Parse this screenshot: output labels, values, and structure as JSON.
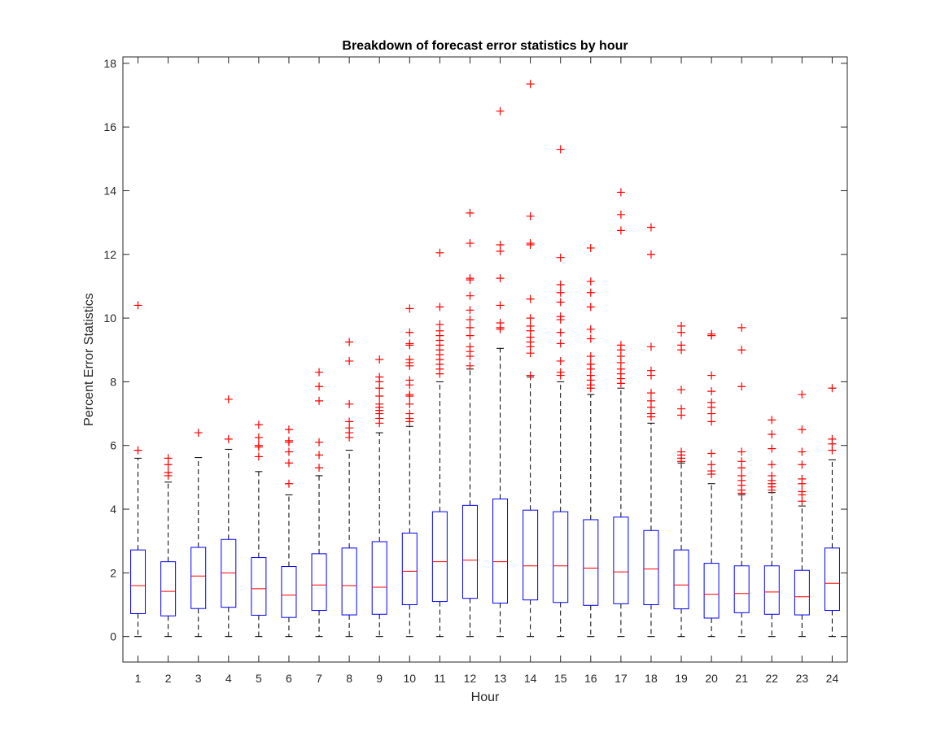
{
  "chart_data": {
    "type": "boxplot",
    "title": "Breakdown of forecast error statistics by hour",
    "xlabel": "Hour",
    "ylabel": "Percent Error Statistics",
    "ylim": [
      -0.8,
      18.2
    ],
    "yticks": [
      0,
      2,
      4,
      6,
      8,
      10,
      12,
      14,
      16,
      18
    ],
    "grid": false,
    "legend": "none",
    "colors": {
      "box": "#0000ff",
      "median": "#ff0000",
      "whisker": "#000000",
      "outlier": "#ff0000",
      "axis": "#262626"
    },
    "categories": [
      "1",
      "2",
      "3",
      "4",
      "5",
      "6",
      "7",
      "8",
      "9",
      "10",
      "11",
      "12",
      "13",
      "14",
      "15",
      "16",
      "17",
      "18",
      "19",
      "20",
      "21",
      "22",
      "23",
      "24"
    ],
    "boxes": [
      {
        "hour": "1",
        "min": 0,
        "q1": 0.72,
        "median": 1.6,
        "q3": 2.72,
        "max": 5.6,
        "outliers": [
          5.85,
          10.4
        ]
      },
      {
        "hour": "2",
        "min": 0,
        "q1": 0.65,
        "median": 1.42,
        "q3": 2.35,
        "max": 4.85,
        "outliers": [
          5.05,
          5.15,
          5.4,
          5.6
        ]
      },
      {
        "hour": "3",
        "min": 0,
        "q1": 0.88,
        "median": 1.9,
        "q3": 2.8,
        "max": 5.62,
        "outliers": [
          6.4
        ]
      },
      {
        "hour": "4",
        "min": 0,
        "q1": 0.92,
        "median": 2.0,
        "q3": 3.05,
        "max": 5.88,
        "outliers": [
          6.2,
          7.45
        ]
      },
      {
        "hour": "5",
        "min": 0,
        "q1": 0.67,
        "median": 1.5,
        "q3": 2.48,
        "max": 5.18,
        "outliers": [
          5.65,
          5.95,
          6.0,
          6.25,
          6.65
        ]
      },
      {
        "hour": "6",
        "min": 0,
        "q1": 0.6,
        "median": 1.3,
        "q3": 2.2,
        "max": 4.45,
        "outliers": [
          4.8,
          5.45,
          5.8,
          6.1,
          6.15,
          6.5
        ]
      },
      {
        "hour": "7",
        "min": 0,
        "q1": 0.82,
        "median": 1.62,
        "q3": 2.6,
        "max": 5.05,
        "outliers": [
          5.3,
          5.7,
          6.1,
          7.4,
          7.85,
          8.3
        ]
      },
      {
        "hour": "8",
        "min": 0,
        "q1": 0.68,
        "median": 1.6,
        "q3": 2.78,
        "max": 5.85,
        "outliers": [
          6.25,
          6.4,
          6.55,
          6.75,
          7.3,
          8.65,
          9.25
        ]
      },
      {
        "hour": "9",
        "min": 0,
        "q1": 0.7,
        "median": 1.55,
        "q3": 2.98,
        "max": 6.4,
        "outliers": [
          6.7,
          6.85,
          7.0,
          7.1,
          7.2,
          7.3,
          7.55,
          7.8,
          8.0,
          8.15,
          8.7
        ]
      },
      {
        "hour": "10",
        "min": 0,
        "q1": 1.0,
        "median": 2.05,
        "q3": 3.25,
        "max": 6.6,
        "outliers": [
          6.75,
          6.85,
          7.0,
          7.3,
          7.55,
          7.6,
          7.9,
          8.05,
          8.5,
          8.6,
          8.7,
          9.15,
          9.2,
          9.55,
          10.3
        ]
      },
      {
        "hour": "11",
        "min": 0,
        "q1": 1.1,
        "median": 2.35,
        "q3": 3.92,
        "max": 8.0,
        "outliers": [
          8.25,
          8.4,
          8.55,
          8.7,
          8.85,
          9.0,
          9.15,
          9.3,
          9.45,
          9.6,
          9.8,
          10.35,
          12.05
        ]
      },
      {
        "hour": "12",
        "min": 0,
        "q1": 1.2,
        "median": 2.4,
        "q3": 4.12,
        "max": 8.4,
        "outliers": [
          8.5,
          8.8,
          8.95,
          9.1,
          9.45,
          9.7,
          9.95,
          10.25,
          10.7,
          11.2,
          11.25,
          12.35,
          13.3
        ]
      },
      {
        "hour": "13",
        "min": 0,
        "q1": 1.05,
        "median": 2.35,
        "q3": 4.32,
        "max": 9.05,
        "outliers": [
          9.65,
          9.7,
          9.85,
          10.4,
          11.25,
          12.1,
          12.3,
          16.5
        ]
      },
      {
        "hour": "14",
        "min": 0,
        "q1": 1.15,
        "median": 2.22,
        "q3": 3.97,
        "max": 8.15,
        "outliers": [
          8.2,
          8.9,
          9.1,
          9.25,
          9.4,
          9.6,
          9.75,
          10.0,
          10.6,
          12.3,
          12.35,
          13.2,
          17.35
        ]
      },
      {
        "hour": "15",
        "min": 0,
        "q1": 1.07,
        "median": 2.22,
        "q3": 3.92,
        "max": 8.0,
        "outliers": [
          8.2,
          8.3,
          8.65,
          9.2,
          9.55,
          9.95,
          10.05,
          10.5,
          10.8,
          11.05,
          11.9,
          15.3
        ]
      },
      {
        "hour": "16",
        "min": 0,
        "q1": 0.98,
        "median": 2.15,
        "q3": 3.67,
        "max": 7.6,
        "outliers": [
          7.8,
          7.9,
          8.05,
          8.2,
          8.4,
          8.55,
          8.8,
          9.35,
          9.65,
          10.35,
          10.8,
          11.15,
          12.2
        ]
      },
      {
        "hour": "17",
        "min": 0,
        "q1": 1.03,
        "median": 2.03,
        "q3": 3.75,
        "max": 7.8,
        "outliers": [
          7.95,
          8.1,
          8.25,
          8.4,
          8.6,
          8.8,
          9.0,
          9.15,
          12.75,
          13.25,
          13.95
        ]
      },
      {
        "hour": "18",
        "min": 0,
        "q1": 1.0,
        "median": 2.12,
        "q3": 3.33,
        "max": 6.7,
        "outliers": [
          6.9,
          7.0,
          7.2,
          7.4,
          7.65,
          8.2,
          8.35,
          9.1,
          12.0,
          12.85
        ]
      },
      {
        "hour": "19",
        "min": 0,
        "q1": 0.87,
        "median": 1.62,
        "q3": 2.72,
        "max": 5.45,
        "outliers": [
          5.5,
          5.6,
          5.7,
          5.8,
          6.95,
          7.15,
          7.75,
          9.0,
          9.15,
          9.55,
          9.75
        ]
      },
      {
        "hour": "20",
        "min": 0,
        "q1": 0.58,
        "median": 1.33,
        "q3": 2.3,
        "max": 4.8,
        "outliers": [
          5.1,
          5.2,
          5.4,
          5.75,
          6.75,
          7.0,
          7.2,
          7.35,
          7.7,
          8.2,
          9.45,
          9.5
        ]
      },
      {
        "hour": "21",
        "min": 0,
        "q1": 0.75,
        "median": 1.35,
        "q3": 2.22,
        "max": 4.45,
        "outliers": [
          4.5,
          4.6,
          4.75,
          4.9,
          5.05,
          5.3,
          5.5,
          5.8,
          7.85,
          9.0,
          9.7
        ]
      },
      {
        "hour": "22",
        "min": 0,
        "q1": 0.7,
        "median": 1.4,
        "q3": 2.22,
        "max": 4.52,
        "outliers": [
          4.6,
          4.7,
          4.8,
          4.9,
          5.05,
          5.4,
          5.9,
          6.35,
          6.8
        ]
      },
      {
        "hour": "23",
        "min": 0,
        "q1": 0.68,
        "median": 1.25,
        "q3": 2.08,
        "max": 4.1,
        "outliers": [
          4.25,
          4.45,
          4.55,
          4.8,
          4.95,
          5.4,
          5.8,
          6.5,
          7.6
        ]
      },
      {
        "hour": "24",
        "min": 0,
        "q1": 0.82,
        "median": 1.67,
        "q3": 2.78,
        "max": 5.55,
        "outliers": [
          5.85,
          6.05,
          6.2,
          7.8
        ]
      }
    ]
  }
}
